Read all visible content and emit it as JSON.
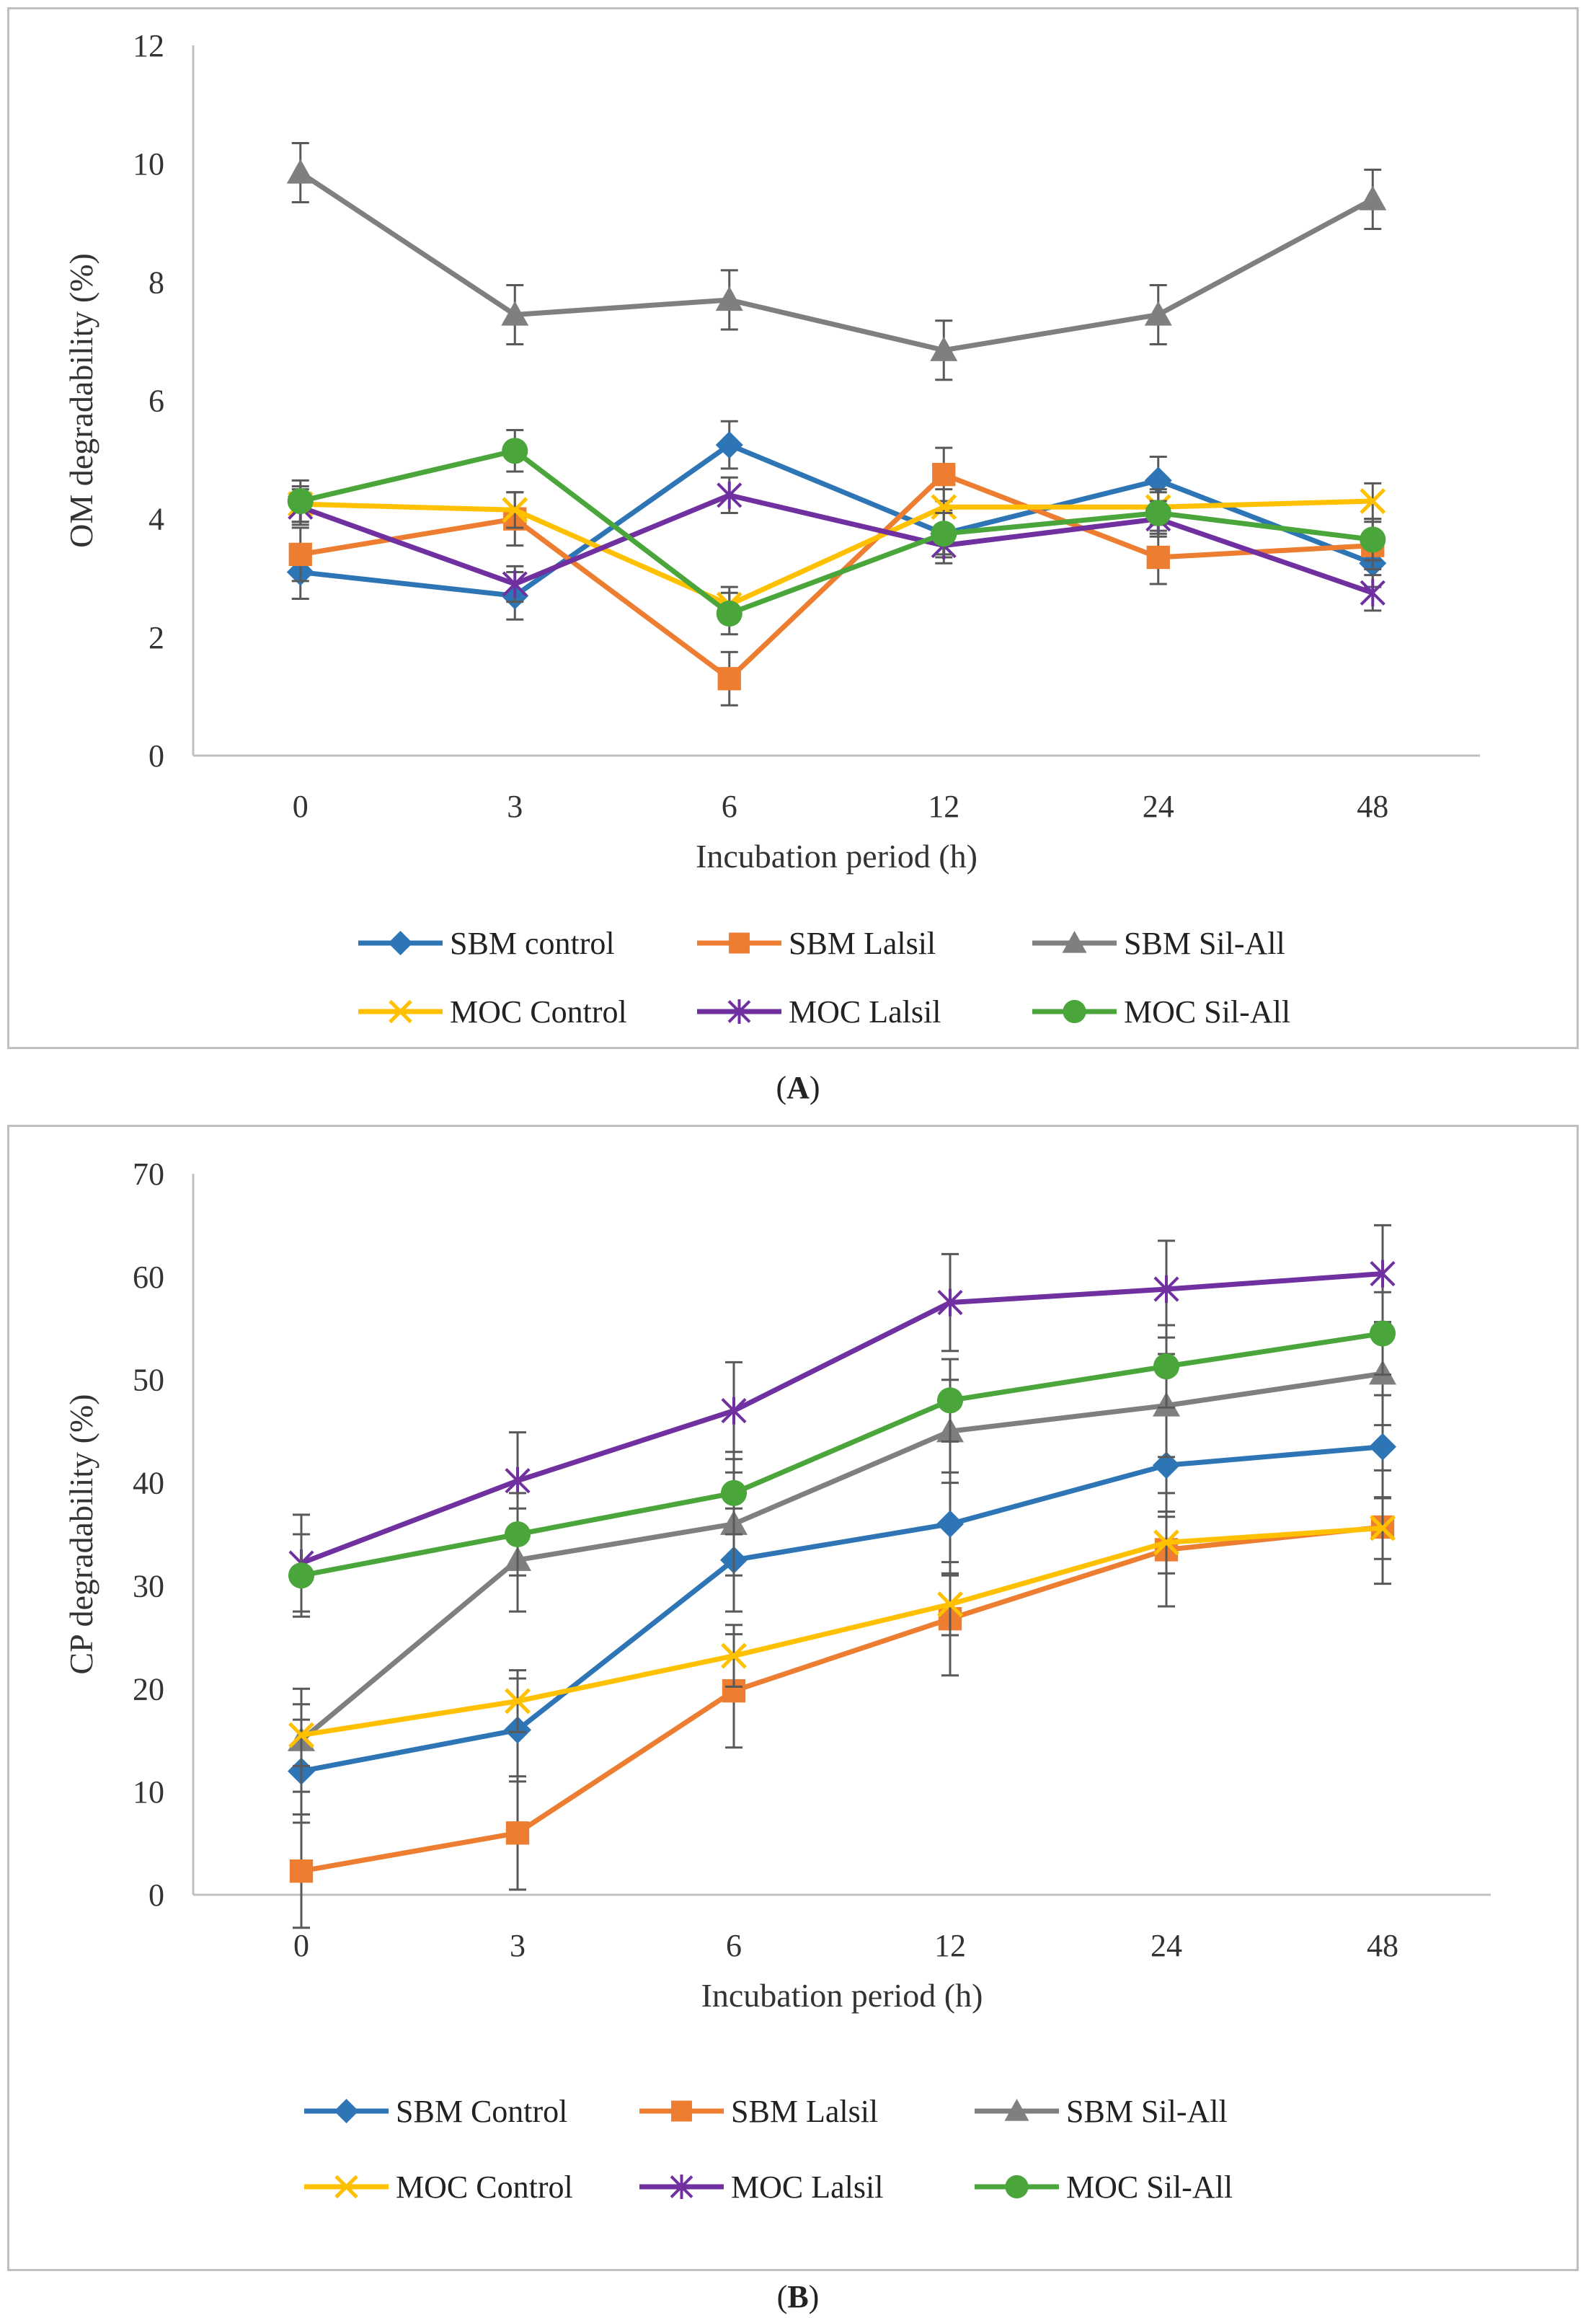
{
  "chart_data": [
    {
      "panel": "A",
      "type": "line",
      "ylabel": "OM degradability (%)",
      "xlabel": "Incubation period (h)",
      "categories": [
        "0",
        "3",
        "6",
        "12",
        "24",
        "48"
      ],
      "ylim": [
        0,
        12
      ],
      "yticks": [
        "0",
        "2",
        "4",
        "6",
        "8",
        "10",
        "12"
      ],
      "grid": false,
      "legend_position": "bottom",
      "series": [
        {
          "name": "SBM control",
          "color": "#2e75b6",
          "marker": "diamond",
          "values": [
            3.1,
            2.7,
            5.25,
            3.75,
            4.65,
            3.25
          ],
          "error": [
            0.45,
            0.4,
            0.4,
            0.4,
            0.4,
            0.4
          ]
        },
        {
          "name": "SBM Lalsil",
          "color": "#ed7d31",
          "marker": "square",
          "values": [
            3.4,
            4.0,
            1.3,
            4.75,
            3.35,
            3.55
          ],
          "error": [
            0.45,
            0.45,
            0.45,
            0.45,
            0.45,
            0.4
          ]
        },
        {
          "name": "SBM Sil-All",
          "color": "#7f7f7f",
          "marker": "triangle",
          "values": [
            9.85,
            7.45,
            7.7,
            6.85,
            7.45,
            9.4
          ],
          "error": [
            0.5,
            0.5,
            0.5,
            0.5,
            0.5,
            0.5
          ]
        },
        {
          "name": "MOC Control",
          "color": "#ffc000",
          "marker": "x",
          "values": [
            4.25,
            4.15,
            2.55,
            4.2,
            4.2,
            4.3
          ],
          "error": [
            0.3,
            0.3,
            0.3,
            0.3,
            0.3,
            0.3
          ]
        },
        {
          "name": "MOC Lalsil",
          "color": "#7030a0",
          "marker": "star",
          "values": [
            4.2,
            2.9,
            4.4,
            3.55,
            4.0,
            2.75
          ],
          "error": [
            0.3,
            0.3,
            0.3,
            0.3,
            0.3,
            0.3
          ]
        },
        {
          "name": "MOC Sil-All",
          "color": "#4aa63a",
          "marker": "circle",
          "values": [
            4.3,
            5.15,
            2.4,
            3.75,
            4.1,
            3.65
          ],
          "error": [
            0.35,
            0.35,
            0.35,
            0.35,
            0.35,
            0.35
          ]
        }
      ]
    },
    {
      "panel": "B",
      "type": "line",
      "ylabel": "CP degradability (%)",
      "xlabel": "Incubation period (h)",
      "categories": [
        "0",
        "3",
        "6",
        "12",
        "24",
        "48"
      ],
      "ylim": [
        0,
        70
      ],
      "yticks": [
        "0",
        "10",
        "20",
        "30",
        "40",
        "50",
        "60",
        "70"
      ],
      "grid": false,
      "legend_position": "bottom",
      "series": [
        {
          "name": "SBM Control",
          "color": "#2e75b6",
          "marker": "diamond",
          "values": [
            12.0,
            16.0,
            32.5,
            36.0,
            41.7,
            43.5
          ],
          "error": [
            5.0,
            5.0,
            5.0,
            5.0,
            5.0,
            5.0
          ]
        },
        {
          "name": "SBM Lalsil",
          "color": "#ed7d31",
          "marker": "square",
          "values": [
            2.3,
            6.0,
            19.8,
            26.8,
            33.5,
            35.7
          ],
          "error": [
            5.5,
            5.5,
            5.5,
            5.5,
            5.5,
            5.5
          ]
        },
        {
          "name": "SBM Sil-All",
          "color": "#7f7f7f",
          "marker": "triangle",
          "values": [
            15.0,
            32.5,
            36.0,
            45.0,
            47.5,
            50.6
          ],
          "error": [
            5.0,
            5.0,
            5.0,
            5.0,
            5.0,
            5.0
          ]
        },
        {
          "name": "MOC Control",
          "color": "#ffc000",
          "marker": "x",
          "values": [
            15.5,
            18.8,
            23.2,
            28.2,
            34.2,
            35.6
          ],
          "error": [
            3.0,
            3.0,
            3.0,
            3.0,
            3.0,
            3.0
          ]
        },
        {
          "name": "MOC Lalsil",
          "color": "#7030a0",
          "marker": "star",
          "values": [
            32.2,
            40.2,
            47.0,
            57.5,
            58.8,
            60.3
          ],
          "error": [
            4.7,
            4.7,
            4.7,
            4.7,
            4.7,
            4.7
          ]
        },
        {
          "name": "MOC Sil-All",
          "color": "#4aa63a",
          "marker": "circle",
          "values": [
            31.0,
            35.0,
            39.0,
            48.0,
            51.3,
            54.5
          ],
          "error": [
            4.0,
            4.0,
            4.0,
            4.0,
            4.0,
            4.0
          ]
        }
      ]
    }
  ],
  "labels": {
    "a_letter": "A",
    "b_letter": "B",
    "open_paren": "(",
    "close_paren": ")"
  }
}
